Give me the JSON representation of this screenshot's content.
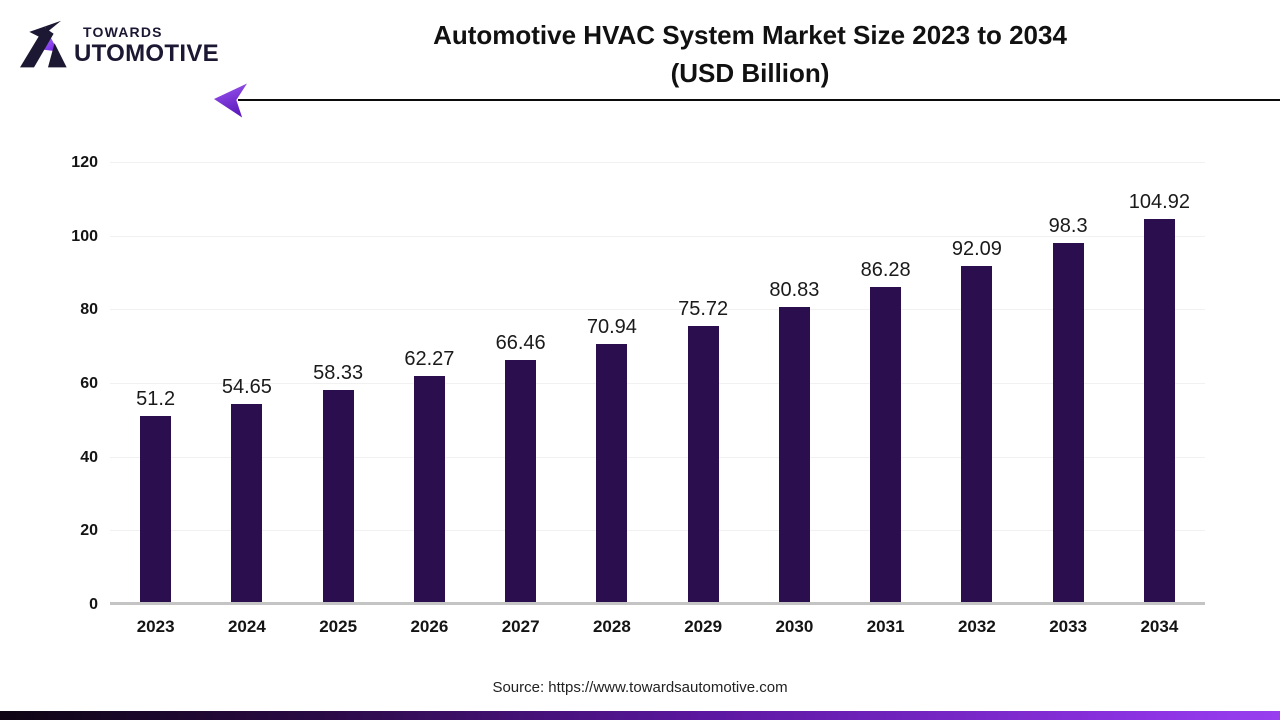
{
  "logo": {
    "top_text": "TOWARDS",
    "bottom_text": "AUTOMOTIVE"
  },
  "header": {
    "title_line1": "Automotive HVAC System Market Size 2023 to 2034",
    "title_line2": "(USD Billion)"
  },
  "footer": {
    "source_text": "Source: https://www.towardsautomotive.com"
  },
  "colors": {
    "bar_fill": "#2B0E4E",
    "logo_dark": "#1C1732",
    "accent_purple": "#7C3AED",
    "gridline": "#F1F1F1",
    "axis_line": "#C4C4C4",
    "bottom_gradient_start": "#0E0414",
    "bottom_gradient_end": "#9840F0"
  },
  "chart_data": {
    "type": "bar",
    "title": "Automotive HVAC System Market Size 2023 to 2034 (USD Billion)",
    "unit": "USD Billion",
    "categories": [
      "2023",
      "2024",
      "2025",
      "2026",
      "2027",
      "2028",
      "2029",
      "2030",
      "2031",
      "2032",
      "2033",
      "2034"
    ],
    "values": [
      51.2,
      54.65,
      58.33,
      62.27,
      66.46,
      70.94,
      75.72,
      80.83,
      86.28,
      92.09,
      98.3,
      104.92
    ],
    "xlabel": "",
    "ylabel": "",
    "ylim": [
      0,
      120
    ],
    "yticks": [
      0,
      20,
      40,
      60,
      80,
      100,
      120
    ],
    "grid": true,
    "legend": false,
    "bar_color": "#2B0E4E"
  }
}
